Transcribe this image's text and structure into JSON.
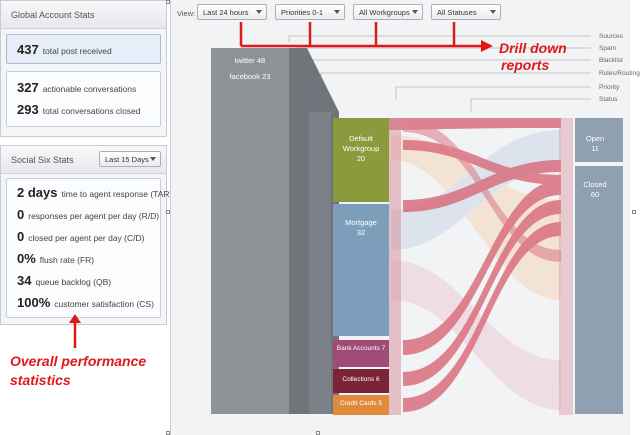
{
  "global": {
    "title": "Global Account Stats",
    "total_posts": {
      "value": "437",
      "label": "total post received"
    },
    "actionable": {
      "value": "327",
      "label": "actionable conversations"
    },
    "closed": {
      "value": "293",
      "label": "total conversations closed"
    }
  },
  "social": {
    "title": "Social Six Stats",
    "period": "Last 15 Days",
    "stats": [
      {
        "value": "2 days",
        "label": "time to agent response (TAR)"
      },
      {
        "value": "0",
        "label": "responses per agent per day (R/D)"
      },
      {
        "value": "0",
        "label": "closed per agent per day (C/D)"
      },
      {
        "value": "0%",
        "label": "flush rate (FR)"
      },
      {
        "value": "34",
        "label": "queue backlog (QB)"
      },
      {
        "value": "100%",
        "label": "customer satisfaction (CS)"
      }
    ]
  },
  "filters": {
    "view_label": "View:",
    "time": "Last 24 hours",
    "priority": "Priorities 0-1",
    "workgroup": "All Workgroups",
    "status": "All Statuses"
  },
  "flow": {
    "stages": [
      "Sources",
      "Spam",
      "Blacklist",
      "Rules/Routing",
      "Priority",
      "Status"
    ],
    "sources": {
      "twitter": "twitter 48",
      "facebook": "facebook 23"
    },
    "workgroups": [
      {
        "name": "Default Workgroup",
        "count": "20",
        "color": "#8a9a3c"
      },
      {
        "name": "Mortgage",
        "count": "32",
        "color": "#7d9ebb"
      },
      {
        "name": "Bank Accounts 7",
        "color": "#a04a78"
      },
      {
        "name": "Collections 6",
        "color": "#7a2438"
      },
      {
        "name": "Credit Cards 5",
        "color": "#e08a3c"
      }
    ],
    "statuses": [
      {
        "name": "Open",
        "count": "11"
      },
      {
        "name": "Closed",
        "count": "60"
      }
    ]
  },
  "annotations": {
    "drill_down_line1": "Drill down",
    "drill_down_line2": "reports",
    "overall_line1": "Overall performance",
    "overall_line2": "statistics"
  }
}
